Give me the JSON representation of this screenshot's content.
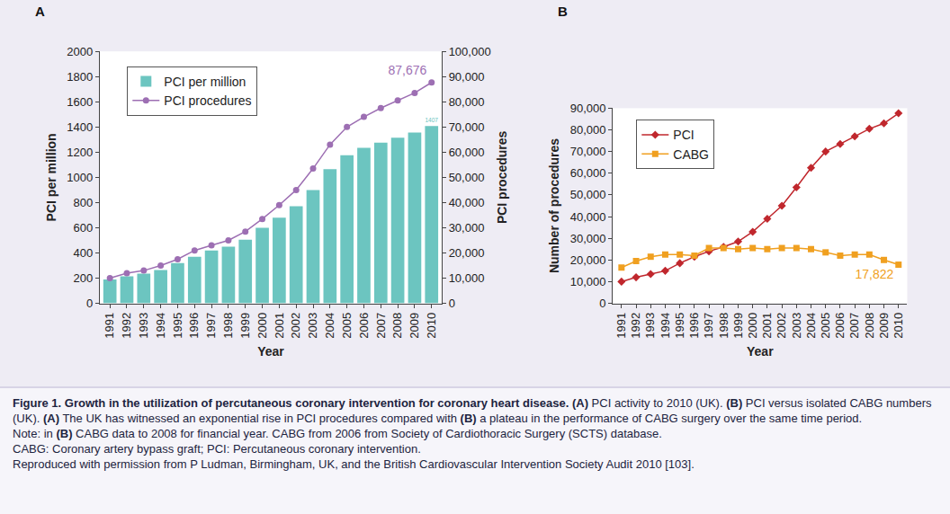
{
  "chart_data": [
    {
      "type": "bar",
      "label": "A",
      "x_label": "Year",
      "y_label": "PCI per million",
      "y2_label": "PCI procedures",
      "categories": [
        "1991",
        "1992",
        "1993",
        "1994",
        "1995",
        "1996",
        "1997",
        "1998",
        "1999",
        "2000",
        "2001",
        "2002",
        "2003",
        "2004",
        "2005",
        "2006",
        "2007",
        "2008",
        "2009",
        "2010"
      ],
      "ylim": [
        0,
        2000
      ],
      "yticks": [
        0,
        200,
        400,
        600,
        800,
        1000,
        1200,
        1400,
        1600,
        1800,
        2000
      ],
      "y2lim": [
        0,
        100000
      ],
      "y2ticks": [
        0,
        {
          "value": 10000,
          "label": "10,000"
        },
        {
          "value": 20000,
          "label": "20,000"
        },
        {
          "value": 30000,
          "label": "30,000"
        },
        {
          "value": 40000,
          "label": "40,000"
        },
        {
          "value": 50000,
          "label": "50,000"
        },
        {
          "value": 60000,
          "label": "60,000"
        },
        {
          "value": 70000,
          "label": "70,000"
        },
        {
          "value": 80000,
          "label": "80,000"
        },
        {
          "value": 90000,
          "label": "90,000"
        },
        {
          "value": 100000,
          "label": "100,000"
        }
      ],
      "legend": "upper left",
      "grid": false,
      "series": [
        {
          "name": "PCI per million",
          "type": "bar",
          "color": "#6cc5c0",
          "values": [
            190,
            215,
            235,
            265,
            320,
            370,
            420,
            450,
            505,
            600,
            680,
            770,
            900,
            1065,
            1175,
            1235,
            1275,
            1315,
            1355,
            1407
          ],
          "value_labels": [
            null,
            null,
            null,
            null,
            null,
            null,
            null,
            null,
            null,
            null,
            null,
            null,
            null,
            null,
            null,
            null,
            null,
            null,
            null,
            "1407"
          ]
        },
        {
          "name": "PCI procedures",
          "type": "line",
          "axis": "y2",
          "color": "#9d6fb3",
          "marker": "circle",
          "values": [
            10000,
            12000,
            13000,
            15000,
            17500,
            21000,
            23000,
            25000,
            28500,
            33500,
            39000,
            45000,
            53500,
            63000,
            70000,
            74000,
            77500,
            80500,
            83500,
            87676
          ],
          "value_labels": [
            null,
            null,
            null,
            null,
            null,
            null,
            null,
            null,
            null,
            null,
            null,
            null,
            null,
            null,
            null,
            null,
            null,
            null,
            null,
            "87,676"
          ]
        }
      ]
    },
    {
      "type": "line",
      "label": "B",
      "x_label": "Year",
      "y_label": "Number of procedures",
      "categories": [
        "1991",
        "1992",
        "1993",
        "1994",
        "1995",
        "1996",
        "1997",
        "1998",
        "1999",
        "2000",
        "2001",
        "2002",
        "2003",
        "2004",
        "2005",
        "2006",
        "2007",
        "2008",
        "2009",
        "2010"
      ],
      "ylim": [
        0,
        90000
      ],
      "yticks": [
        0,
        {
          "value": 10000,
          "label": "10,000"
        },
        {
          "value": 20000,
          "label": "20,000"
        },
        {
          "value": 30000,
          "label": "30,000"
        },
        {
          "value": 40000,
          "label": "40,000"
        },
        {
          "value": 50000,
          "label": "50,000"
        },
        {
          "value": 60000,
          "label": "60,000"
        },
        {
          "value": 70000,
          "label": "70,000"
        },
        {
          "value": 80000,
          "label": "80,000"
        },
        {
          "value": 90000,
          "label": "90,000"
        }
      ],
      "legend": "upper left",
      "grid": false,
      "series": [
        {
          "name": "PCI",
          "color": "#c0272d",
          "marker": "diamond",
          "values": [
            10000,
            12000,
            13500,
            15000,
            18500,
            21500,
            24000,
            26000,
            28500,
            33000,
            39000,
            45000,
            53500,
            62500,
            70000,
            73500,
            77000,
            80500,
            83000,
            87676
          ]
        },
        {
          "name": "CABG",
          "color": "#f0a020",
          "marker": "square",
          "values": [
            16500,
            19500,
            21500,
            22500,
            22500,
            22000,
            25500,
            25500,
            25000,
            25500,
            25000,
            25500,
            25500,
            25000,
            23500,
            22000,
            22500,
            22500,
            20000,
            17822
          ],
          "value_labels": [
            null,
            null,
            null,
            null,
            null,
            null,
            null,
            null,
            null,
            null,
            null,
            null,
            null,
            null,
            null,
            null,
            null,
            null,
            null,
            "17,822"
          ]
        }
      ]
    }
  ],
  "caption": [
    [
      {
        "text": "Figure 1. Growth in the utilization of percutaneous coronary intervention for coronary heart disease.",
        "bold": true
      },
      {
        "text": " ",
        "bold": false
      },
      {
        "text": "(A)",
        "bold": true
      },
      {
        "text": " PCI activity to 2010 (UK). ",
        "bold": false
      },
      {
        "text": "(B)",
        "bold": true
      },
      {
        "text": " PCI versus isolated CABG numbers (UK). ",
        "bold": false
      },
      {
        "text": "(A)",
        "bold": true
      },
      {
        "text": " The UK has witnessed an exponential rise in PCI procedures compared with ",
        "bold": false
      },
      {
        "text": "(B)",
        "bold": true
      },
      {
        "text": " a plateau in the performance of CABG surgery over the same time period.",
        "bold": false
      }
    ],
    [
      {
        "text": "Note: in ",
        "bold": false
      },
      {
        "text": "(B)",
        "bold": true
      },
      {
        "text": " CABG data to 2008 for financial year. CABG from 2006 from Society of Cardiothoracic Surgery (SCTS) database.",
        "bold": false
      }
    ],
    [
      {
        "text": "CABG: Coronary artery bypass graft; PCI: Percutaneous coronary intervention.",
        "bold": false
      }
    ],
    [
      {
        "text": "Reproduced with permission from P Ludman, Birmingham, UK, and the British Cardiovascular Intervention Society Audit 2010 [103].",
        "bold": false
      }
    ]
  ]
}
